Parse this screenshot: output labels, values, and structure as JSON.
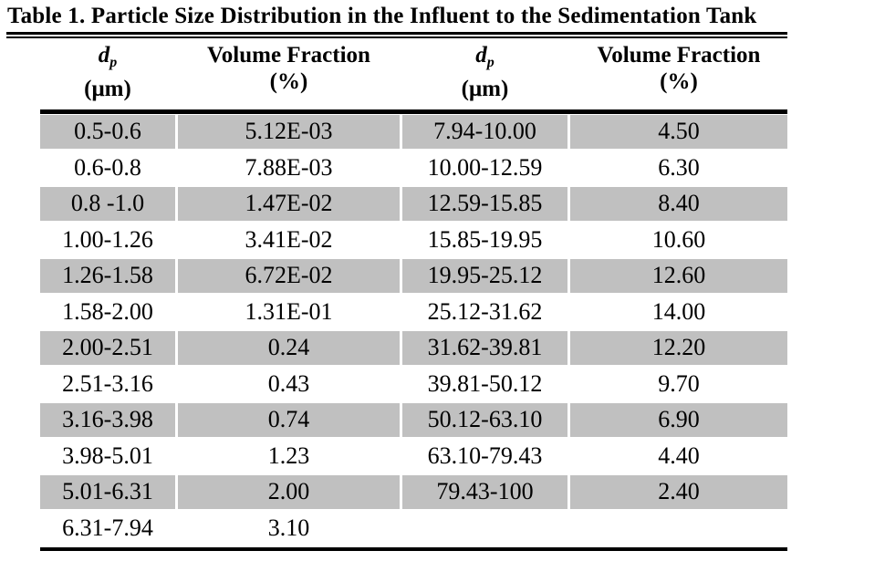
{
  "title": "Table 1. Particle Size Distribution in the Influent to the Sedimentation Tank",
  "table": {
    "columns": [
      {
        "symbol": "d",
        "subscript": "p",
        "unit": "(μm)"
      },
      {
        "label": "Volume Fraction",
        "unit": "(%)"
      },
      {
        "symbol": "d",
        "subscript": "p",
        "unit": "(μm)"
      },
      {
        "label": "Volume Fraction",
        "unit": "(%)"
      }
    ],
    "rows": [
      [
        "0.5-0.6",
        "5.12E-03",
        "7.94-10.00",
        "4.50"
      ],
      [
        "0.6-0.8",
        "7.88E-03",
        "10.00-12.59",
        "6.30"
      ],
      [
        "0.8 -1.0",
        "1.47E-02",
        "12.59-15.85",
        "8.40"
      ],
      [
        "1.00-1.26",
        "3.41E-02",
        "15.85-19.95",
        "10.60"
      ],
      [
        "1.26-1.58",
        "6.72E-02",
        "19.95-25.12",
        "12.60"
      ],
      [
        "1.58-2.00",
        "1.31E-01",
        "25.12-31.62",
        "14.00"
      ],
      [
        "2.00-2.51",
        "0.24",
        "31.62-39.81",
        "12.20"
      ],
      [
        "2.51-3.16",
        "0.43",
        "39.81-50.12",
        "9.70"
      ],
      [
        "3.16-3.98",
        "0.74",
        "50.12-63.10",
        "6.90"
      ],
      [
        "3.98-5.01",
        "1.23",
        "63.10-79.43",
        "4.40"
      ],
      [
        "5.01-6.31",
        "2.00",
        "79.43-100",
        "2.40"
      ],
      [
        "6.31-7.94",
        "3.10",
        "",
        ""
      ]
    ]
  },
  "colors": {
    "row_shading": "#c0c0c0",
    "rule": "#000000",
    "text": "#000000"
  }
}
